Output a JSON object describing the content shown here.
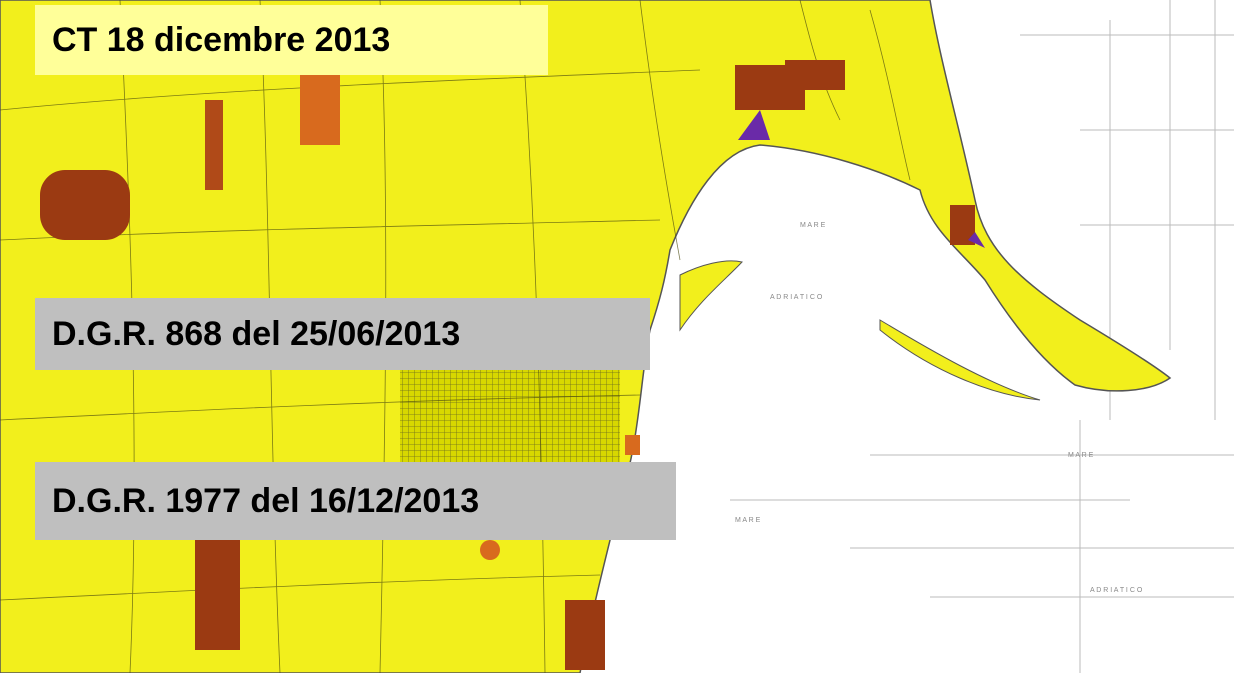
{
  "labels": {
    "ct": "CT 18 dicembre 2013",
    "dgr868": "D.G.R. 868 del 25/06/2013",
    "dgr1977": "D.G.R. 1977 del 16/12/2013"
  },
  "map_text": [
    "M A R E",
    "A D R I A T I C O",
    "M A R E",
    "M A R E",
    "A D R I A T I C O"
  ]
}
